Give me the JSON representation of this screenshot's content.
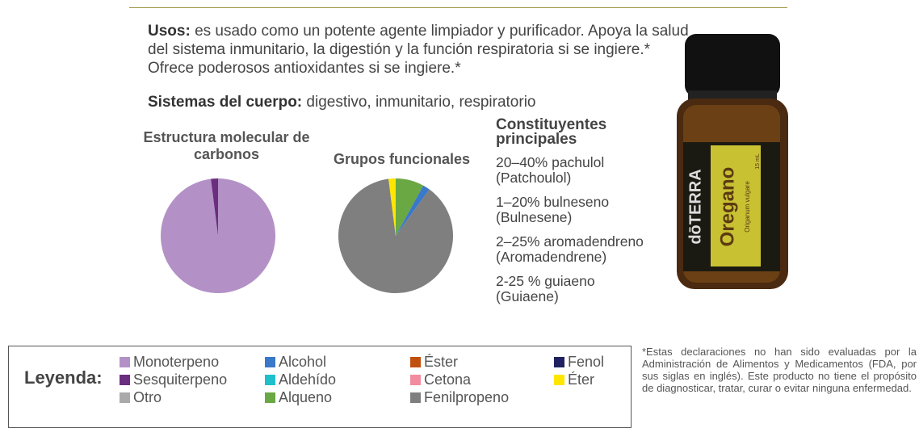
{
  "uses": {
    "label": "Usos:",
    "text": " es usado como un potente agente limpiador y purificador. Apoya la salud del sistema inmunitario, la digestión y la función respiratoria si se ingiere.* Ofrece poderosos antioxidantes si se ingiere.*"
  },
  "body_systems": {
    "label": "Sistemas del cuerpo:",
    "text": " digestivo, inmunitario, respiratorio"
  },
  "charts": [
    {
      "type": "pie",
      "title": "Estructura molecular de carbonos",
      "slices": [
        {
          "name": "Monoterpeno",
          "value": 98
        },
        {
          "name": "Sesquiterpeno",
          "value": 2
        }
      ]
    },
    {
      "type": "pie",
      "title": "Grupos funcionales",
      "slices": [
        {
          "name": "Alqueno",
          "value": 8
        },
        {
          "name": "Alcohol",
          "value": 2
        },
        {
          "name": "Fenilpropeno",
          "value": 88
        },
        {
          "name": "Éter",
          "value": 2
        }
      ]
    }
  ],
  "constituents": {
    "title": "Constituyentes principales",
    "items": [
      {
        "amount": "20–40% pachulol",
        "english": "(Patchoulol)"
      },
      {
        "amount": "1–20% bulneseno",
        "english": "(Bulnesene)"
      },
      {
        "amount": "2–25% aromadendreno",
        "english": "(Aromadendrene)"
      },
      {
        "amount": "2-25 % guiaeno",
        "english": "(Guiaene)"
      }
    ]
  },
  "product_image": {
    "brand": "dōTERRA",
    "name": "Oregano",
    "latin": "Origanum vulgare",
    "size": "15 mL"
  },
  "legend": {
    "title": "Leyenda:",
    "entries": [
      {
        "name": "Monoterpeno",
        "color": "#b391c6"
      },
      {
        "name": "Sesquiterpeno",
        "color": "#6a2d7f"
      },
      {
        "name": "Otro",
        "color": "#aaaaaa"
      },
      {
        "name": "Alcohol",
        "color": "#3a78c9"
      },
      {
        "name": "Aldehído",
        "color": "#1fbfcc"
      },
      {
        "name": "Alqueno",
        "color": "#6aa843"
      },
      {
        "name": "Éster",
        "color": "#c0500f"
      },
      {
        "name": "Cetona",
        "color": "#f28ca0"
      },
      {
        "name": "Fenilpropeno",
        "color": "#7f7f7f"
      },
      {
        "name": "Fenol",
        "color": "#1f2160"
      },
      {
        "name": "Éter",
        "color": "#ffe600"
      }
    ]
  },
  "disclaimer": "*Estas declaraciones no han sido evaluadas por la Administración de Alimentos y Medicamentos (FDA, por sus siglas en inglés). Este producto no tiene el propósito de diagnosticar, tratar, curar o evitar ninguna enfermedad."
}
